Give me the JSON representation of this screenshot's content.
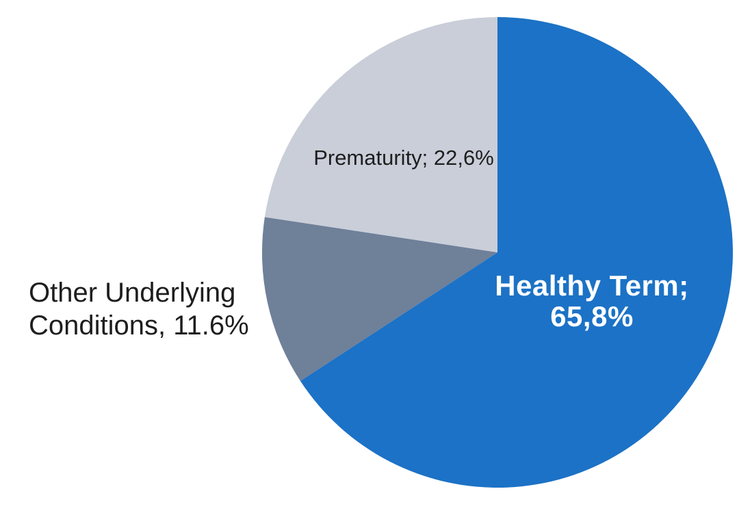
{
  "page": {
    "background_color": "#FFFFFF"
  },
  "chart_data": {
    "type": "pie",
    "direction": "clockwise",
    "start_angle_deg": 0,
    "legend": "none",
    "slices": [
      {
        "id": "healthy-term",
        "name": "Healthy Term",
        "value": 65.8,
        "color": "#1C72C6",
        "label": {
          "lines": [
            "Healthy Term;",
            "65,8%"
          ],
          "color": "#FFFFFF",
          "placement": "inside",
          "bold": true
        }
      },
      {
        "id": "other-underlying-conditions",
        "name": "Other Underlying Conditions",
        "value": 11.6,
        "color": "#6F8099",
        "label": {
          "lines": [
            "Other Underlying",
            "Conditions, 11.6%"
          ],
          "color": "#1E1E1E",
          "placement": "outside-left",
          "bold": false
        }
      },
      {
        "id": "prematurity",
        "name": "Prematurity",
        "value": 22.6,
        "color": "#C9CED9",
        "label": {
          "lines": [
            "Prematurity; 22,6%"
          ],
          "color": "#1E1E1E",
          "placement": "inside",
          "bold": false
        }
      }
    ]
  }
}
